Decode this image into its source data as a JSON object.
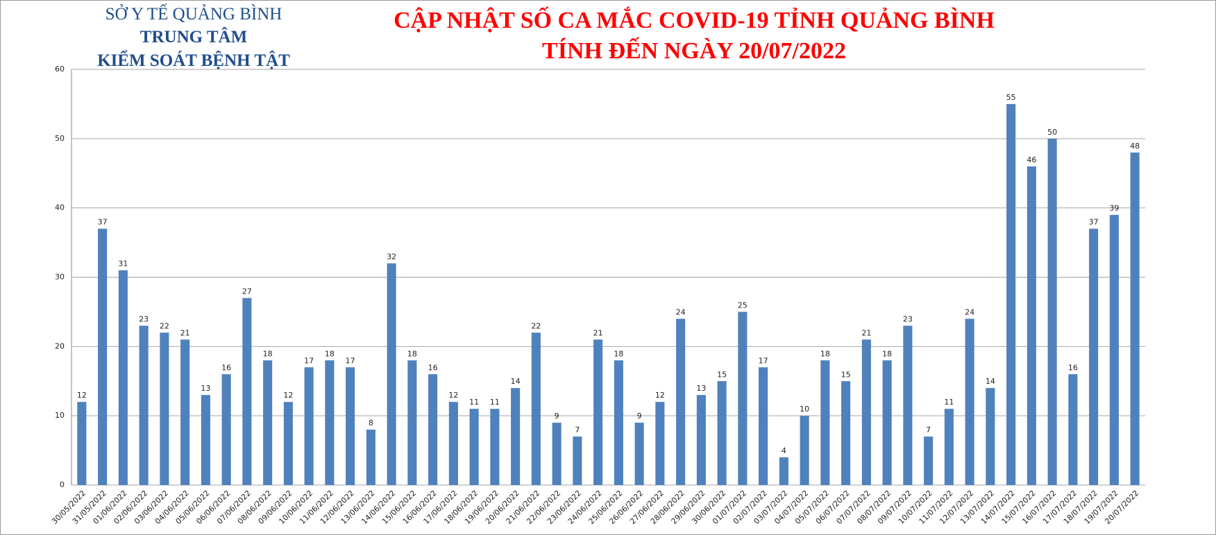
{
  "header": {
    "org_lines": [
      "SỞ Y TẾ QUẢNG BÌNH",
      "TRUNG TÂM",
      "KIỂM SOÁT BỆNH TẬT"
    ]
  },
  "chart_data": {
    "type": "bar",
    "title_lines": [
      "CẬP NHẬT SỐ CA MẮC COVID-19 TỈNH QUẢNG BÌNH",
      "TÍNH ĐẾN NGÀY 20/07/2022"
    ],
    "categories": [
      "30/05/2022",
      "31/05/2022",
      "01/06/2022",
      "02/06/2022",
      "03/06/2022",
      "04/06/2022",
      "05/06/2022",
      "06/06/2022",
      "07/06/2022",
      "08/06/2022",
      "09/06/2022",
      "10/06/2022",
      "11/06/2022",
      "12/06/2022",
      "13/06/2022",
      "14/06/2022",
      "15/06/2022",
      "16/06/2022",
      "17/06/2022",
      "18/06/2022",
      "19/06/2022",
      "20/06/2022",
      "21/06/2022",
      "22/06/2022",
      "23/06/2022",
      "24/06/2022",
      "25/06/2022",
      "26/06/2022",
      "27/06/2022",
      "28/06/2022",
      "29/06/2022",
      "30/06/2022",
      "01/07/2022",
      "02/07/2022",
      "03/07/2022",
      "04/07/2022",
      "05/07/2022",
      "06/07/2022",
      "07/07/2022",
      "08/07/2022",
      "09/07/2022",
      "10/07/2022",
      "11/07/2022",
      "12/07/2022",
      "13/07/2022",
      "14/07/2022",
      "15/07/2022",
      "16/07/2022",
      "17/07/2022",
      "18/07/2022",
      "19/07/2022",
      "20/07/2022"
    ],
    "values": [
      12,
      37,
      31,
      23,
      22,
      21,
      13,
      16,
      27,
      18,
      12,
      17,
      18,
      17,
      8,
      32,
      18,
      16,
      12,
      11,
      11,
      14,
      22,
      9,
      7,
      21,
      18,
      9,
      12,
      24,
      13,
      15,
      25,
      17,
      4,
      10,
      18,
      15,
      21,
      18,
      23,
      7,
      11,
      24,
      14,
      55,
      46,
      50,
      16,
      37,
      39,
      48
    ],
    "color": "#4f81bd",
    "ylim": [
      0,
      60
    ],
    "yticks": [
      0,
      10,
      20,
      30,
      40,
      50,
      60
    ],
    "grid": true
  }
}
